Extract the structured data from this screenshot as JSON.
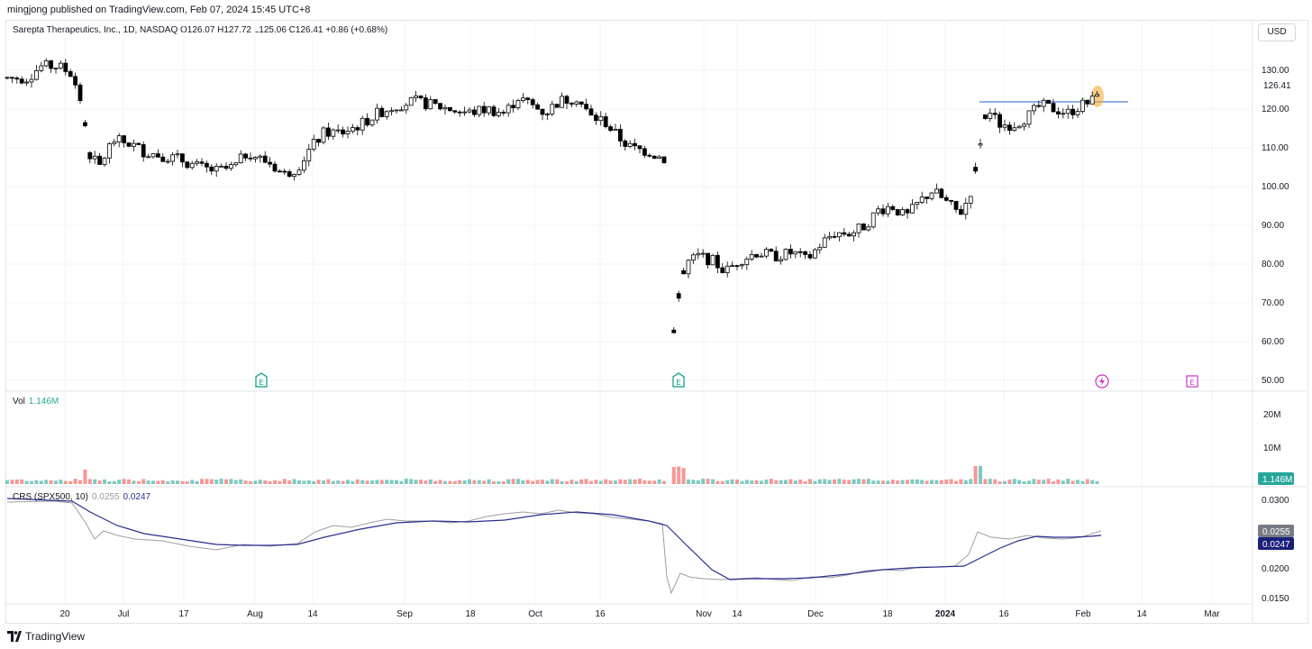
{
  "header": {
    "publish_info": "mingjong published on TradingView.com, Feb 07, 2024 15:45 UTC+8",
    "symbol_info": "Sarepta Therapeutics, Inc., 1D, NASDAQ  O126.07  H127.72  L125.06  C126.41  +0.86 (+0.68%)",
    "currency": "USD"
  },
  "price_axis": {
    "ticks": [
      "130.00",
      "120.00",
      "110.00",
      "100.00",
      "90.00",
      "80.00",
      "70.00",
      "60.00",
      "50.00"
    ],
    "last_price": "126.41"
  },
  "volume": {
    "label": "Vol",
    "value": "1.146M",
    "ticks": [
      "20M",
      "10M"
    ],
    "last_badge": "1.146M"
  },
  "crs": {
    "label": "CRS (SPX500, 10)",
    "value1": "0.0255",
    "value2": "0.0247",
    "ticks": [
      "0.0300",
      "0.0250",
      "0.0200",
      "0.0150"
    ],
    "badge1": "0.0255",
    "badge2": "0.0247"
  },
  "time_axis": [
    "20",
    "Jul",
    "17",
    "Aug",
    "14",
    "Sep",
    "18",
    "Oct",
    "16",
    "Nov",
    "14",
    "Dec",
    "18",
    "2024",
    "16",
    "Feb",
    "14",
    "Mar"
  ],
  "markers": {
    "earnings": "E",
    "dividend_icon": "lightning-icon"
  },
  "colors": {
    "up": "#ffffff",
    "down": "#000000",
    "vol_up": "#26a69a",
    "vol_down": "#ef5350",
    "crs_price": "#9e9e9e",
    "crs_ma": "#2a2e8c",
    "resistance": "#4a7fd8",
    "highlight": "#f5a623",
    "earnings": "#089981",
    "future_earnings": "#c735c7"
  },
  "footer": {
    "brand": "TradingView"
  }
}
